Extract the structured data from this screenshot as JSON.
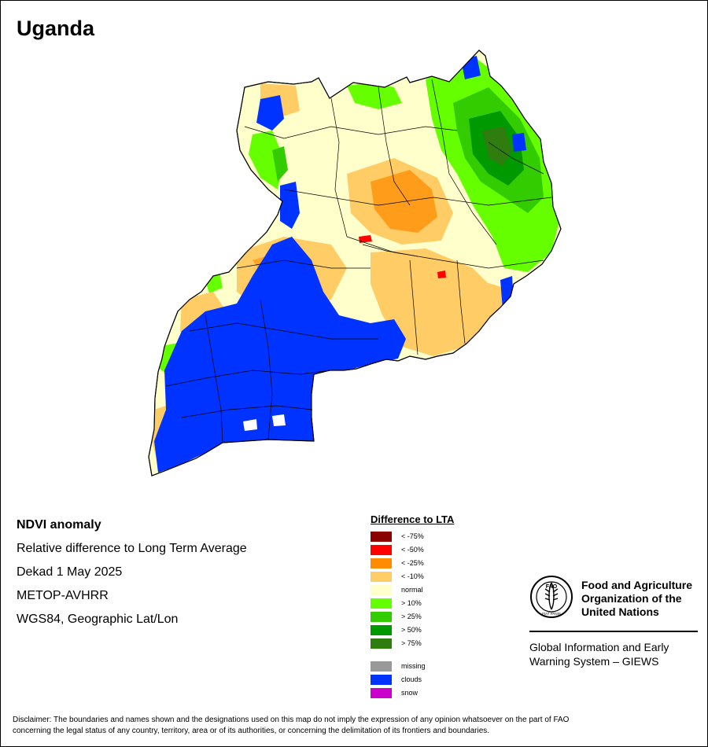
{
  "map_title": "Uganda",
  "info": {
    "product": "NDVI anomaly",
    "description": "Relative difference to Long Term Average",
    "period": "Dekad 1 May 2025",
    "sensor": "METOP-AVHRR",
    "projection": "WGS84, Geographic Lat/Lon"
  },
  "legend": {
    "title": "Difference to LTA",
    "classes": [
      {
        "label": "< -75%",
        "color": "#8b0000"
      },
      {
        "label": "< -50%",
        "color": "#ff0000"
      },
      {
        "label": "< -25%",
        "color": "#ff8c00"
      },
      {
        "label": "< -10%",
        "color": "#ffcc66"
      },
      {
        "label": "normal",
        "color": "#ffffcc"
      },
      {
        "label": "> 10%",
        "color": "#66ff00"
      },
      {
        "label": "> 25%",
        "color": "#33cc00"
      },
      {
        "label": "> 50%",
        "color": "#009900"
      },
      {
        "label": "> 75%",
        "color": "#2e7d0e"
      }
    ],
    "extra_classes": [
      {
        "label": "missing",
        "color": "#999999"
      },
      {
        "label": "clouds",
        "color": "#0033ff"
      },
      {
        "label": "snow",
        "color": "#cc00cc"
      }
    ]
  },
  "organization": {
    "name_line1": "Food and Agriculture",
    "name_line2": "Organization of the",
    "name_line3": "United Nations",
    "logo_text": "FAO",
    "logo_motto": "FIAT PANIS",
    "system_line1": "Global Information and Early",
    "system_line2": "Warning System – GIEWS"
  },
  "disclaimer_line1": "Disclaimer: The boundaries and names shown and the designations used on this map do not imply the expression of any opinion whatsoever on the part of FAO",
  "disclaimer_line2": "concerning the legal status of any country, territory, area or of its authorities, or concerning the delimitation of its frontiers and boundaries."
}
